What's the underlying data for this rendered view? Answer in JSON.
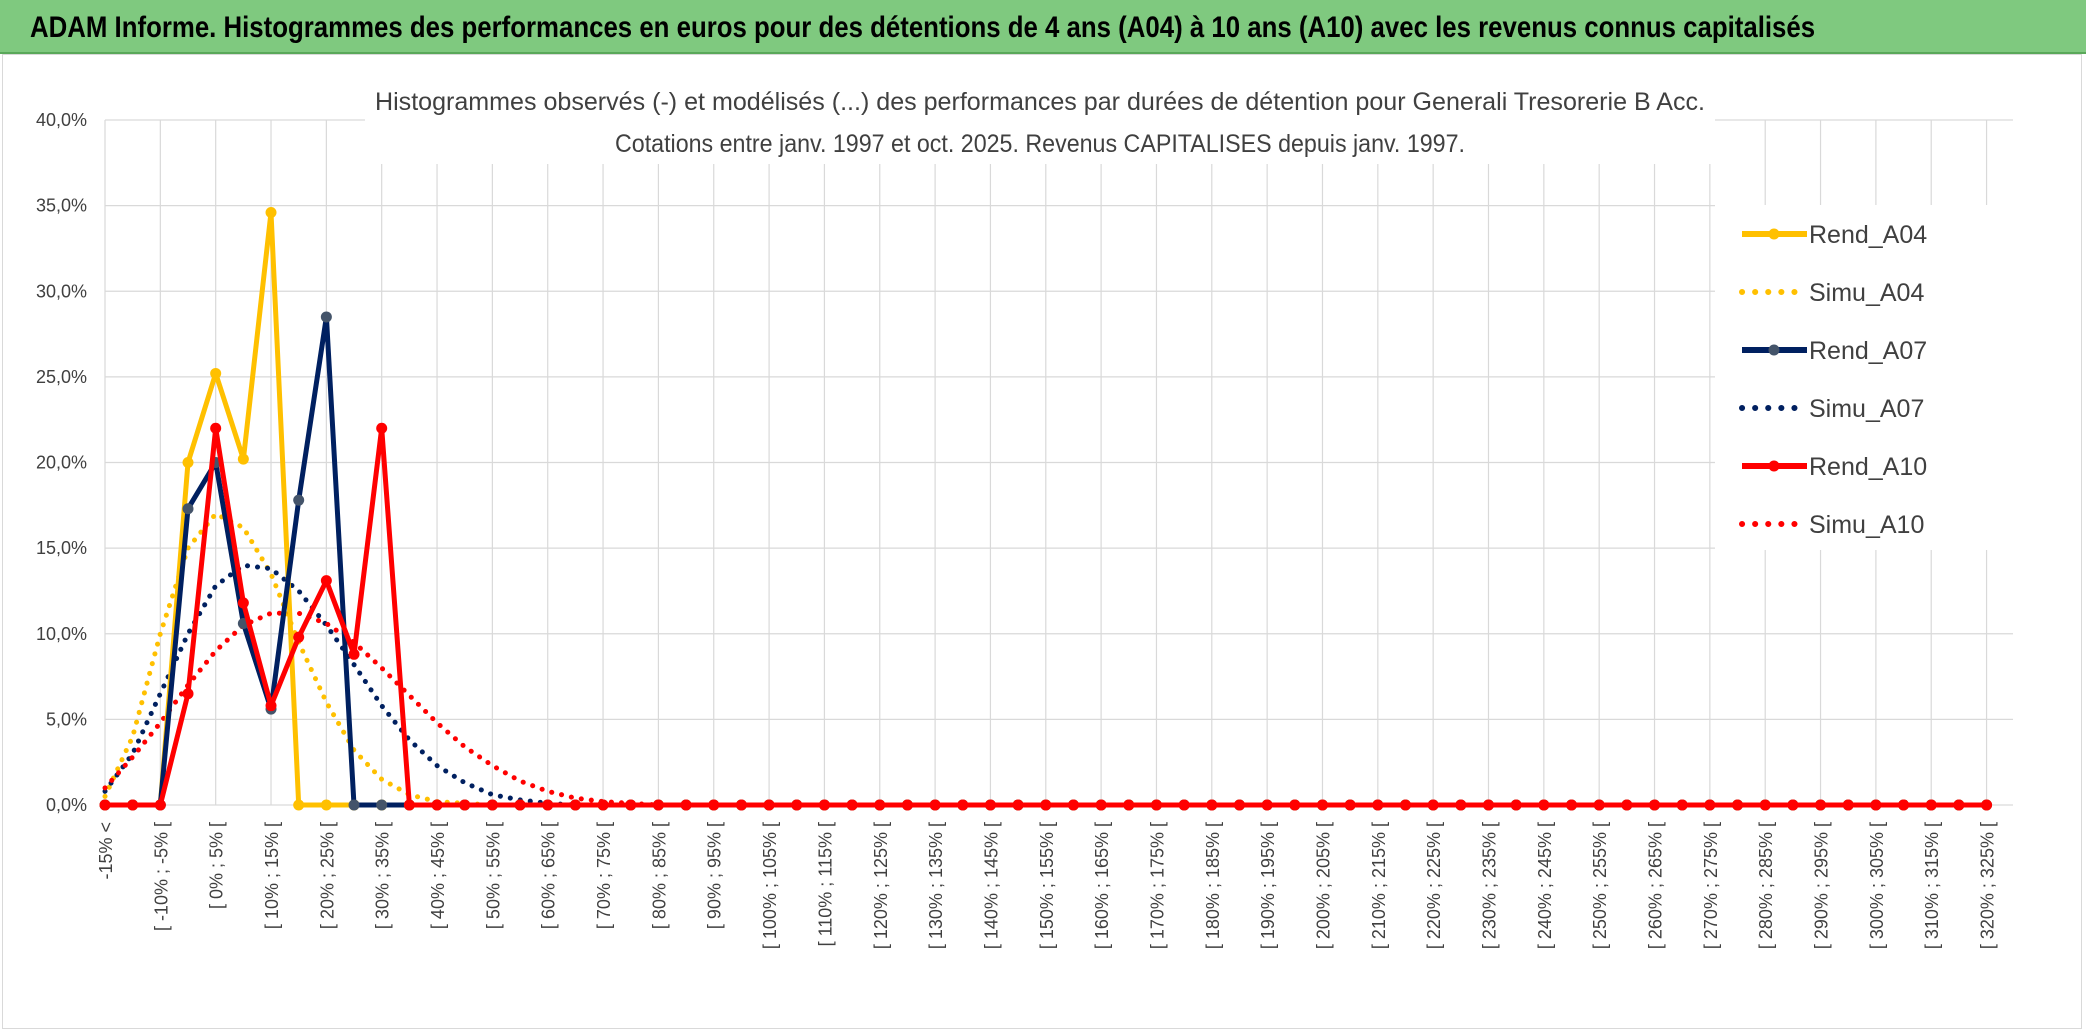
{
  "banner": {
    "title": "ADAM Informe. Histogrammes des performances en euros pour des détentions de 4 ans (A04) à 10 ans (A10) avec les revenus connus capitalisés"
  },
  "chart_data": {
    "type": "line",
    "title": "Histogrammes observés (-) et modélisés (...) des performances par durées de détention pour Generali Tresorerie B Acc.",
    "subtitle": "Cotations entre janv. 1997 et oct. 2025. Revenus CAPITALISES depuis janv. 1997.",
    "xlabel": "",
    "ylabel": "",
    "ylim": [
      0,
      40
    ],
    "yticks": [
      "0,0%",
      "5,0%",
      "10,0%",
      "15,0%",
      "20,0%",
      "25,0%",
      "30,0%",
      "35,0%",
      "40,0%"
    ],
    "grid": true,
    "legend_position": "right",
    "x_labels": [
      "-15% <",
      "[ -10% ; -5% [",
      "[ 0% ; 5% [",
      "[ 10% ; 15% [",
      "[ 20% ; 25% [",
      "[ 30% ; 35% [",
      "[ 40% ; 45% [",
      "[ 50% ; 55% [",
      "[ 60% ; 65% [",
      "[ 70% ; 75% [",
      "[ 80% ; 85% [",
      "[ 90% ; 95% [",
      "[ 100% ; 105% [",
      "[ 110% ; 115% [",
      "[ 120% ; 125% [",
      "[ 130% ; 135% [",
      "[ 140% ; 145% [",
      "[ 150% ; 155% [",
      "[ 160% ; 165% [",
      "[ 170% ; 175% [",
      "[ 180% ; 185% [",
      "[ 190% ; 195% [",
      "[ 200% ; 205% [",
      "[ 210% ; 215% [",
      "[ 220% ; 225% [",
      "[ 230% ; 235% [",
      "[ 240% ; 245% [",
      "[ 250% ; 255% [",
      "[ 260% ; 265% [",
      "[ 270% ; 275% [",
      "[ 280% ; 285% [",
      "[ 290% ; 295% [",
      "[ 300% ; 305% [",
      "[ 310% ; 315% [",
      "[ 320% ; 325% ["
    ],
    "series": [
      {
        "name": "Rend_A04",
        "color": "#ffc000",
        "style": "solid",
        "values": [
          0,
          0,
          0,
          20,
          25.2,
          20.2,
          34.6,
          0,
          0,
          0
        ]
      },
      {
        "name": "Simu_A04",
        "color": "#ffc000",
        "style": "dotted",
        "values": [
          0.5,
          4,
          10,
          15,
          17,
          16.2,
          13.5,
          9.5,
          6,
          3.2,
          1.5,
          0.6,
          0.2,
          0.1,
          0,
          0
        ]
      },
      {
        "name": "Rend_A07",
        "color": "#002060",
        "style": "solid",
        "values": [
          0,
          0,
          0,
          17.3,
          20,
          10.6,
          5.6,
          17.8,
          28.5,
          0,
          0,
          0
        ]
      },
      {
        "name": "Simu_A07",
        "color": "#002060",
        "style": "dotted",
        "values": [
          0.8,
          3,
          6.5,
          10,
          12.8,
          14,
          13.8,
          12.5,
          10.5,
          8.2,
          5.8,
          3.8,
          2.3,
          1.3,
          0.6,
          0.3,
          0.1,
          0,
          0
        ]
      },
      {
        "name": "Rend_A10",
        "color": "#ff0000",
        "style": "solid",
        "values": [
          0,
          0,
          0,
          6.5,
          22,
          11.8,
          5.8,
          9.8,
          13.1,
          8.8,
          22,
          0,
          0
        ]
      },
      {
        "name": "Simu_A10",
        "color": "#ff0000",
        "style": "dotted",
        "values": [
          1,
          2.8,
          4.8,
          7,
          9,
          10.5,
          11.2,
          11.2,
          10.6,
          9.5,
          8,
          6.4,
          4.8,
          3.4,
          2.3,
          1.4,
          0.8,
          0.4,
          0.2,
          0.1,
          0
        ]
      }
    ]
  }
}
